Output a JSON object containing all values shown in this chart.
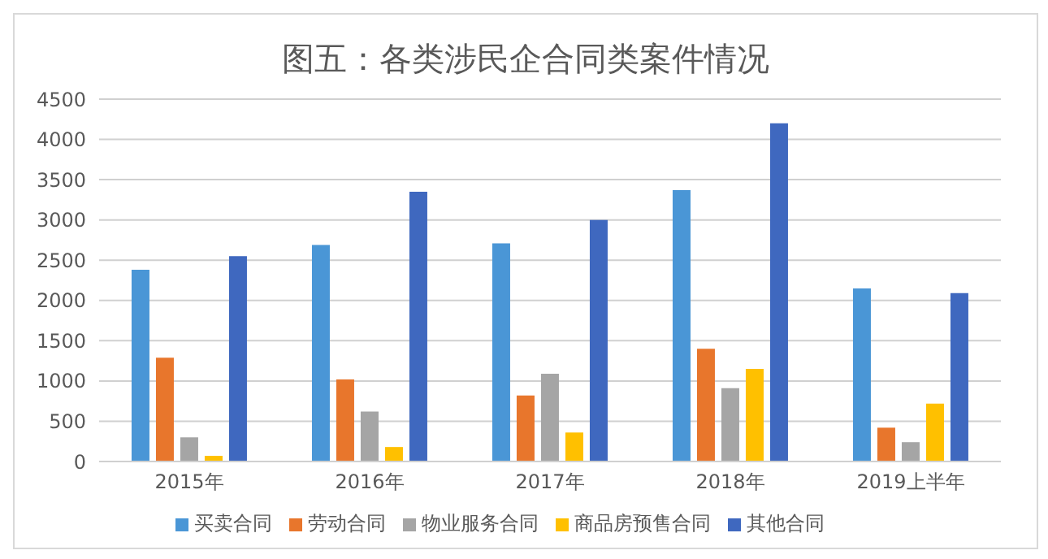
{
  "chart_data": {
    "type": "bar",
    "title": "图五：各类涉民企合同类案件情况",
    "categories": [
      "2015年",
      "2016年",
      "2017年",
      "2018年",
      "2019上半年"
    ],
    "series": [
      {
        "name": "买卖合同",
        "color": "#4a96d6",
        "values": [
          2380,
          2690,
          2710,
          3370,
          2150
        ]
      },
      {
        "name": "劳动合同",
        "color": "#e8762c",
        "values": [
          1290,
          1020,
          820,
          1400,
          420
        ]
      },
      {
        "name": "物业服务合同",
        "color": "#a5a5a5",
        "values": [
          300,
          620,
          1090,
          910,
          240
        ]
      },
      {
        "name": "商品房预售合同",
        "color": "#ffc000",
        "values": [
          70,
          180,
          360,
          1150,
          720
        ]
      },
      {
        "name": "其他合同",
        "color": "#3f68bf",
        "values": [
          2550,
          3350,
          3000,
          4200,
          2090
        ]
      }
    ],
    "ylim": [
      0,
      4500
    ],
    "yticks": [
      0,
      500,
      1000,
      1500,
      2000,
      2500,
      3000,
      3500,
      4000,
      4500
    ],
    "grid": "y",
    "legend": "bottom"
  }
}
